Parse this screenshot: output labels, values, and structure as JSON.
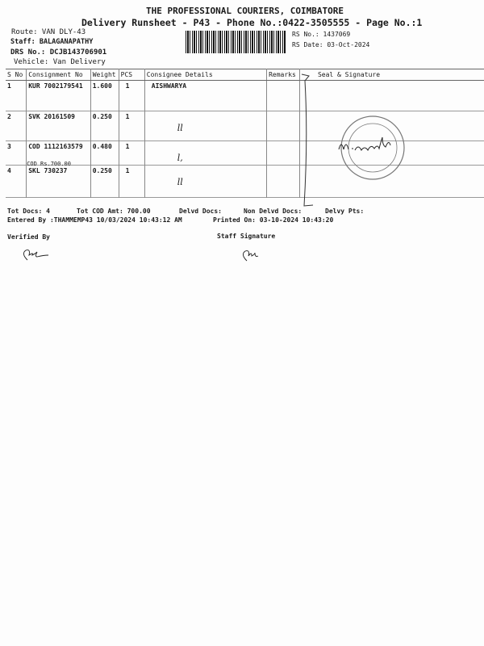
{
  "header": {
    "company": "THE PROFESSIONAL COURIERS, COIMBATORE",
    "subtitle": "Delivery Runsheet - P43 - Phone No.:0422-3505555 - Page No.:1",
    "route": "Route: VAN DLY-43",
    "staff": "Staff: BALAGANAPATHY",
    "drs": "DRS No.: DCJB143706901",
    "vehicle": "Vehicle: Van Delivery",
    "rs_no": "RS No.: 1437069",
    "rs_date": "RS Date: 03-Oct-2024"
  },
  "table": {
    "columns": [
      "S No",
      "Consignment No",
      "Weight",
      "PCS",
      "Consignee Details",
      "Remarks",
      "Seal & Signature"
    ],
    "rows": [
      {
        "sno": "1",
        "consignment": "KUR 7002179541",
        "note": "",
        "weight": "1.600",
        "pcs": "1",
        "consignee": "AISHWARYA",
        "mark": ""
      },
      {
        "sno": "2",
        "consignment": "SVK 20161509",
        "note": "",
        "weight": "0.250",
        "pcs": "1",
        "consignee": "",
        "mark": "ll"
      },
      {
        "sno": "3",
        "consignment": "COD 1112163579",
        "note": "COD Rs.700.00",
        "weight": "0.480",
        "pcs": "1",
        "consignee": "",
        "mark": "l,"
      },
      {
        "sno": "4",
        "consignment": "SKL 730237",
        "note": "",
        "weight": "0.250",
        "pcs": "1",
        "consignee": "",
        "mark": "ll"
      }
    ]
  },
  "stamp": {
    "signature": "M. Vasanthi",
    "color": "#555555"
  },
  "totals": {
    "tot_docs": "Tot Docs:   4",
    "tot_cod": "Tot COD Amt:  700.00",
    "delvd": "Delvd Docs:",
    "non_delvd": "Non Delvd Docs:",
    "delvy_pts": "Delvy Pts:",
    "entered_by": "Entered By :THAMMEMP43 10/03/2024 10:43:12 AM",
    "printed_on": "Printed On: 03-10-2024 10:43:20"
  },
  "footer": {
    "verified_by": "Verified By",
    "staff_signature": "Staff Signature"
  }
}
